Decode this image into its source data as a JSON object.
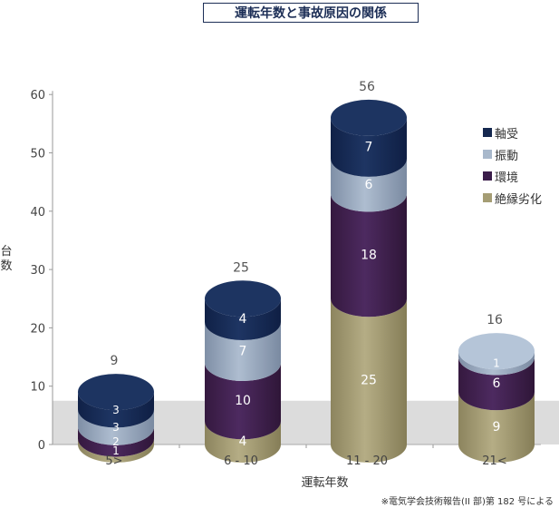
{
  "chart_data": {
    "type": "bar",
    "title": "運転年数と事故原因の関係",
    "xlabel": "運転年数",
    "ylabel": "台数",
    "ylim": [
      0,
      60
    ],
    "yticks": [
      0,
      10,
      20,
      30,
      40,
      50,
      60
    ],
    "grid": false,
    "legend_position": "right",
    "categories": [
      "5>",
      "6 - 10",
      "11 - 20",
      "21<"
    ],
    "totals": [
      9,
      25,
      56,
      16
    ],
    "series": [
      {
        "name": "絶縁劣化",
        "values": [
          1,
          4,
          25,
          9
        ],
        "color": "#8d8560"
      },
      {
        "name": "環境",
        "values": [
          2,
          10,
          18,
          6
        ],
        "color": "#3b1d4a"
      },
      {
        "name": "振動",
        "values": [
          3,
          7,
          6,
          1
        ],
        "color": "#8c9cb3"
      },
      {
        "name": "軸受",
        "values": [
          3,
          4,
          7,
          0
        ],
        "color": "#15284f"
      }
    ],
    "legend_order": [
      "軸受",
      "振動",
      "環境",
      "絶縁劣化"
    ],
    "band_upto": 7.5
  },
  "source_note": "※電気学会技術報告(II 部)第 182 号による"
}
